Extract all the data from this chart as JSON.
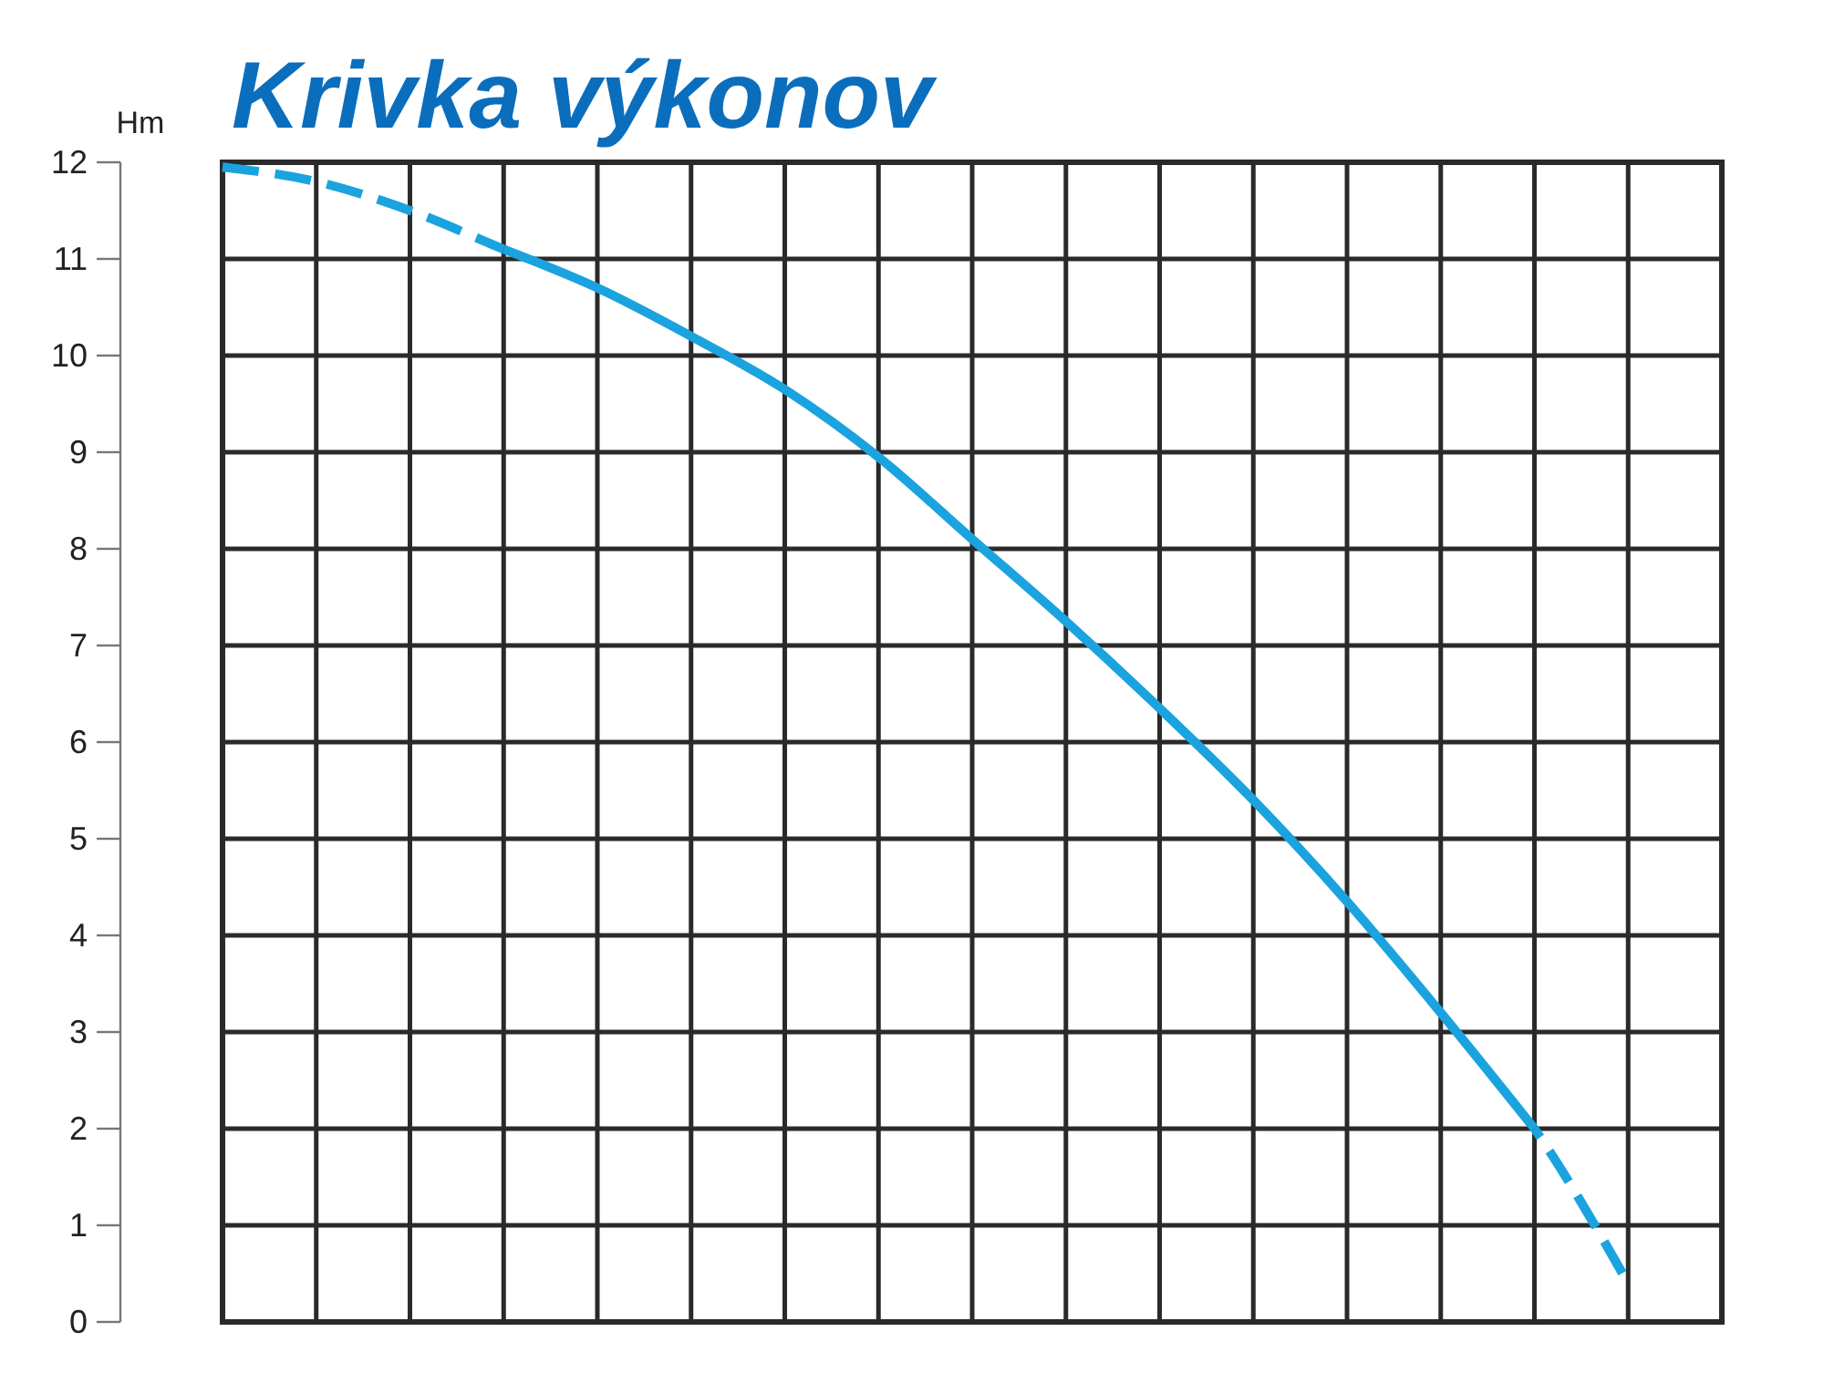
{
  "chart_data": {
    "type": "line",
    "title": "Krivka výkonov",
    "ylabel": "Hm",
    "categories": [
      null,
      null,
      null,
      null,
      null,
      null,
      null,
      null,
      null,
      null,
      null,
      null,
      null,
      null,
      null,
      null
    ],
    "series": [
      {
        "color": "#1aa3de",
        "line_style": "dashed",
        "values": [
          11.95,
          11.8,
          11.5,
          11.1,
          10.7,
          10.2,
          9.65,
          8.95,
          8.1,
          7.25,
          6.35,
          5.4,
          4.35,
          3.2,
          2.0,
          0.4
        ]
      },
      {
        "color": "#1aa3de",
        "line_style": "solid",
        "values": [
          null,
          null,
          null,
          11.1,
          10.7,
          10.2,
          9.65,
          8.95,
          8.1,
          7.25,
          6.35,
          5.4,
          4.35,
          3.2,
          2.0,
          null
        ]
      }
    ],
    "ylim": [
      0,
      12
    ],
    "yticks": [
      0,
      1,
      2,
      3,
      4,
      5,
      6,
      7,
      8,
      9,
      10,
      11,
      12
    ],
    "grid": true,
    "tick_labels": "y"
  }
}
